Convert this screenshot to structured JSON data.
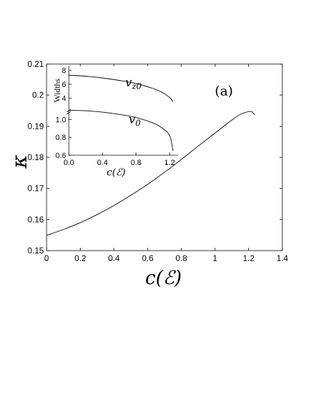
{
  "chart_data": [
    {
      "type": "line",
      "panel_label": "(a)",
      "xlabel": "c(ℰ)",
      "ylabel": "κ",
      "xlim": [
        0,
        1.4
      ],
      "ylim": [
        0.15,
        0.21
      ],
      "x_ticks": [
        "0",
        "0.2",
        "0.4",
        "0.6",
        "0.8",
        "1",
        "1.2",
        "1.4"
      ],
      "y_ticks": [
        "0.15",
        "0.16",
        "0.17",
        "0.18",
        "0.19",
        "0.2",
        "0.21"
      ],
      "series": [
        {
          "x": [
            0,
            0.1,
            0.2,
            0.3,
            0.4,
            0.5,
            0.6,
            0.7,
            0.8,
            0.9,
            1.0,
            1.1,
            1.15,
            1.2,
            1.22,
            1.235
          ],
          "y": [
            0.1549,
            0.1568,
            0.159,
            0.1616,
            0.1645,
            0.1678,
            0.1713,
            0.1752,
            0.1793,
            0.1836,
            0.1878,
            0.192,
            0.1938,
            0.1947,
            0.1946,
            0.1937
          ]
        }
      ]
    },
    {
      "type": "line",
      "inset": true,
      "xlabel": "c(ℰ)",
      "ylabel": "Widths",
      "xlim": [
        0,
        1.3
      ],
      "x_ticks": [
        "0.0",
        "0.4",
        "0.8",
        "1.2"
      ],
      "y_ticks_upper": [
        "8",
        "6",
        "4"
      ],
      "y_ticks_lower": [
        "1.0",
        "0.8",
        "0.6"
      ],
      "upper_ylim": [
        3,
        8
      ],
      "lower_ylim": [
        0.6,
        1.15
      ],
      "series": [
        {
          "name": "v_z0",
          "x": [
            0,
            0.2,
            0.4,
            0.6,
            0.8,
            1.0,
            1.1,
            1.2,
            1.24
          ],
          "y": [
            7.3,
            7.15,
            6.9,
            6.55,
            6.1,
            5.4,
            4.9,
            4.1,
            3.5
          ]
        },
        {
          "name": "v_0",
          "x": [
            0,
            0.2,
            0.4,
            0.6,
            0.8,
            1.0,
            1.1,
            1.2,
            1.24
          ],
          "y": [
            1.1,
            1.095,
            1.08,
            1.055,
            1.02,
            0.96,
            0.91,
            0.82,
            0.65
          ]
        }
      ]
    }
  ]
}
